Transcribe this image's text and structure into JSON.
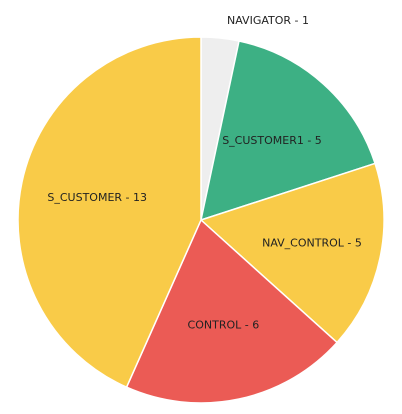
{
  "chart_data": {
    "type": "pie",
    "title": "",
    "slices": [
      {
        "label": "NAVIGATOR - 1",
        "category": "NAVIGATOR",
        "value": 1,
        "color": "#eeeeee"
      },
      {
        "label": "S_CUSTOMER1 - 5",
        "category": "S_CUSTOMER1",
        "value": 5,
        "color": "#3db084"
      },
      {
        "label": "NAV_CONTROL - 5",
        "category": "NAV_CONTROL",
        "value": 5,
        "color": "#f9cb48"
      },
      {
        "label": "CONTROL - 6",
        "category": "CONTROL",
        "value": 6,
        "color": "#eb5b55"
      },
      {
        "label": "S_CUSTOMER - 13",
        "category": "S_CUSTOMER",
        "value": 13,
        "color": "#f9cb48"
      }
    ]
  }
}
